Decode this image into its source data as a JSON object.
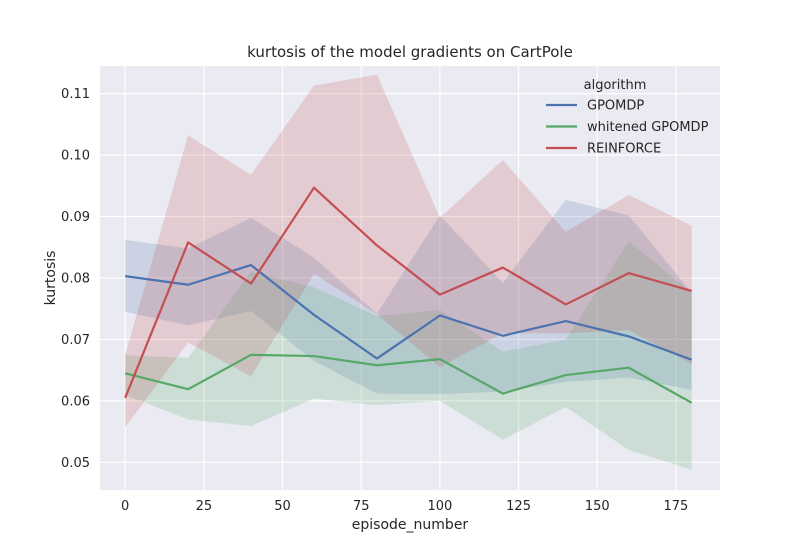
{
  "chart_data": {
    "type": "line",
    "title": "kurtosis of the model gradients on CartPole",
    "xlabel": "episode_number",
    "ylabel": "kurtosis",
    "xlim": [
      -8,
      189
    ],
    "ylim": [
      0.0455,
      0.1145
    ],
    "xticks": [
      0,
      25,
      50,
      75,
      100,
      125,
      150,
      175
    ],
    "yticks": [
      0.05,
      0.06,
      0.07,
      0.08,
      0.09,
      0.1,
      0.11
    ],
    "ytick_labels": [
      "0.05",
      "0.06",
      "0.07",
      "0.08",
      "0.09",
      "0.10",
      "0.11"
    ],
    "grid": true,
    "legend": {
      "title": "algorithm",
      "placement": "top-right"
    },
    "x": [
      0,
      20,
      40,
      60,
      80,
      100,
      120,
      140,
      160,
      180
    ],
    "series": [
      {
        "name": "GPOMDP",
        "color": "#4c72b0",
        "values": [
          0.0803,
          0.0789,
          0.0821,
          0.074,
          0.0669,
          0.0739,
          0.0706,
          0.073,
          0.0705,
          0.0667
        ],
        "ci_upper": [
          0.0862,
          0.0848,
          0.0898,
          0.0833,
          0.0742,
          0.0902,
          0.0792,
          0.0927,
          0.0902,
          0.0776
        ],
        "ci_lower": [
          0.0745,
          0.0723,
          0.0746,
          0.0665,
          0.0612,
          0.0611,
          0.0615,
          0.0631,
          0.0638,
          0.0618
        ]
      },
      {
        "name": "whitened GPOMDP",
        "color": "#55a868",
        "values": [
          0.0645,
          0.0619,
          0.0675,
          0.0673,
          0.0658,
          0.0668,
          0.0612,
          0.0642,
          0.0654,
          0.0597
        ],
        "ci_upper": [
          0.0674,
          0.067,
          0.081,
          0.0785,
          0.0738,
          0.0748,
          0.068,
          0.07,
          0.086,
          0.0776
        ],
        "ci_lower": [
          0.061,
          0.057,
          0.0559,
          0.0604,
          0.0593,
          0.06,
          0.0537,
          0.059,
          0.052,
          0.0488
        ]
      },
      {
        "name": "REINFORCE",
        "color": "#c44e52",
        "values": [
          0.0605,
          0.0858,
          0.0791,
          0.0947,
          0.0853,
          0.0773,
          0.0817,
          0.0757,
          0.0808,
          0.0779
        ],
        "ci_upper": [
          0.0675,
          0.1032,
          0.0968,
          0.1113,
          0.1131,
          0.0898,
          0.0992,
          0.0875,
          0.0935,
          0.0885
        ],
        "ci_lower": [
          0.0557,
          0.0695,
          0.064,
          0.0807,
          0.0741,
          0.0655,
          0.071,
          0.071,
          0.0715,
          0.066
        ]
      }
    ]
  }
}
